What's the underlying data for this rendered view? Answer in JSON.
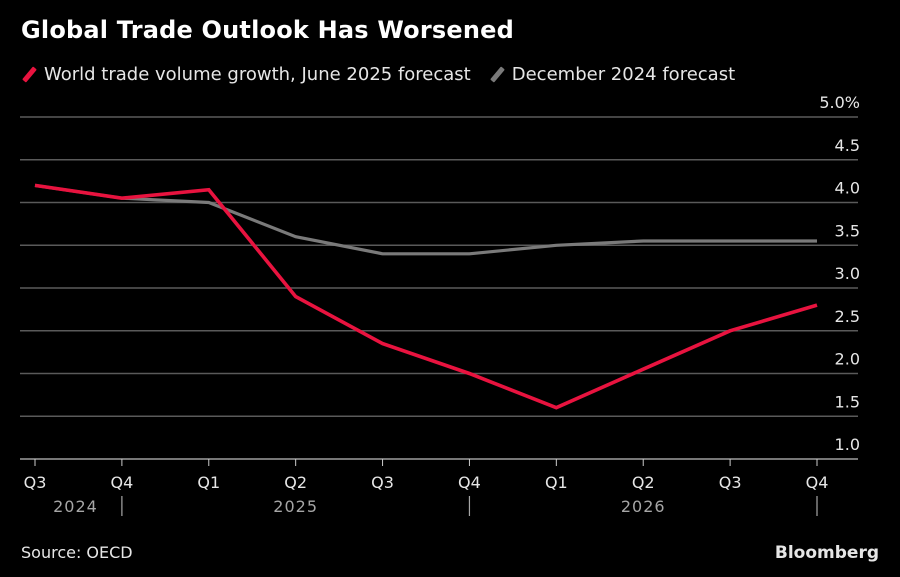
{
  "header": {
    "title": "Global Trade Outlook Has Worsened"
  },
  "legend": [
    {
      "label": "World trade volume growth, June 2025 forecast",
      "color": "#e8133f"
    },
    {
      "label": "December 2024 forecast",
      "color": "#7a7a7a"
    }
  ],
  "footer": {
    "source": "Source: OECD",
    "brand": "Bloomberg"
  },
  "colors": {
    "background": "#000000",
    "grid": "#5a5a5a",
    "axis_text": "#e6e6e6",
    "year_text": "#a6a6a6"
  },
  "chart_data": {
    "type": "line",
    "title": "Global Trade Outlook Has Worsened",
    "xlabel": "",
    "ylabel": "",
    "x": [
      "Q3 2024",
      "Q4 2024",
      "Q1 2025",
      "Q2 2025",
      "Q3 2025",
      "Q4 2025",
      "Q1 2026",
      "Q2 2026",
      "Q3 2026",
      "Q4 2026"
    ],
    "x_tick_labels": [
      "Q3",
      "Q4",
      "Q1",
      "Q2",
      "Q3",
      "Q4",
      "Q1",
      "Q2",
      "Q3",
      "Q4"
    ],
    "year_labels": [
      {
        "label": "2024",
        "center_between": [
          0,
          1
        ]
      },
      {
        "label": "2025",
        "center_index": 3
      },
      {
        "label": "2026",
        "center_index": 7
      }
    ],
    "year_separators_after_index": [
      1,
      5,
      9
    ],
    "ylim": [
      1.0,
      5.0
    ],
    "y_ticks": [
      1.0,
      1.5,
      2.0,
      2.5,
      3.0,
      3.5,
      4.0,
      4.5,
      5.0
    ],
    "y_tick_labels": [
      "1.0",
      "1.5",
      "2.0",
      "2.5",
      "3.0",
      "3.5",
      "4.0",
      "4.5",
      "5.0%"
    ],
    "y_axis_side": "right",
    "grid": true,
    "legend_position": "top-left",
    "series": [
      {
        "name": "December 2024 forecast",
        "color": "#7a7a7a",
        "values": [
          4.2,
          4.05,
          4.0,
          3.6,
          3.4,
          3.4,
          3.5,
          3.55,
          3.55,
          3.55
        ]
      },
      {
        "name": "World trade volume growth, June 2025 forecast",
        "color": "#e8133f",
        "values": [
          4.2,
          4.05,
          4.15,
          2.9,
          2.35,
          2.0,
          1.6,
          2.05,
          2.5,
          2.8
        ]
      }
    ]
  }
}
